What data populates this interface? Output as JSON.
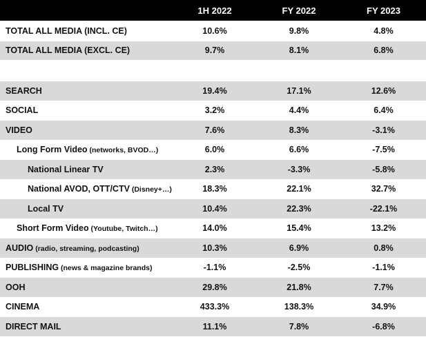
{
  "chart_data": {
    "type": "table",
    "columns": [
      "",
      "1H 2022",
      "FY 2022",
      "FY 2023"
    ],
    "rows": [
      {
        "label": "TOTAL ALL MEDIA (INCL. CE)",
        "note": "",
        "indent": 0,
        "shade": false,
        "values": [
          "10.6%",
          "9.8%",
          "4.8%"
        ]
      },
      {
        "label": "TOTAL ALL MEDIA (EXCL. CE)",
        "note": "",
        "indent": 0,
        "shade": true,
        "values": [
          "9.7%",
          "8.1%",
          "6.8%"
        ]
      },
      {
        "spacer": true
      },
      {
        "label": "SEARCH",
        "note": "",
        "indent": 0,
        "shade": true,
        "values": [
          "19.4%",
          "17.1%",
          "12.6%"
        ]
      },
      {
        "label": "SOCIAL",
        "note": "",
        "indent": 0,
        "shade": false,
        "values": [
          "3.2%",
          "4.4%",
          "6.4%"
        ]
      },
      {
        "label": "VIDEO",
        "note": "",
        "indent": 0,
        "shade": true,
        "values": [
          "7.6%",
          "8.3%",
          "-3.1%"
        ]
      },
      {
        "label": "Long Form Video",
        "note": " (networks, BVOD…)",
        "indent": 1,
        "shade": false,
        "values": [
          "6.0%",
          "6.6%",
          "-7.5%"
        ]
      },
      {
        "label": "National Linear TV",
        "note": "",
        "indent": 2,
        "shade": true,
        "values": [
          "2.3%",
          "-3.3%",
          "-5.8%"
        ]
      },
      {
        "label": "National AVOD, OTT/CTV",
        "note": " (Disney+…)",
        "indent": 2,
        "shade": false,
        "values": [
          "18.3%",
          "22.1%",
          "32.7%"
        ]
      },
      {
        "label": "Local TV",
        "note": "",
        "indent": 2,
        "shade": true,
        "values": [
          "10.4%",
          "22.3%",
          "-22.1%"
        ]
      },
      {
        "label": "Short Form Video",
        "note": " (Youtube, Twitch…)",
        "indent": 1,
        "shade": false,
        "values": [
          "14.0%",
          "15.4%",
          "13.2%"
        ]
      },
      {
        "label": "AUDIO",
        "note": " (radio, streaming, podcasting)",
        "indent": 0,
        "shade": true,
        "values": [
          "10.3%",
          "6.9%",
          "0.8%"
        ]
      },
      {
        "label": "PUBLISHING",
        "note": " (news & magazine brands)",
        "indent": 0,
        "shade": false,
        "values": [
          "-1.1%",
          "-2.5%",
          "-1.1%"
        ]
      },
      {
        "label": "OOH",
        "note": "",
        "indent": 0,
        "shade": true,
        "values": [
          "29.8%",
          "21.8%",
          "7.7%"
        ]
      },
      {
        "label": "CINEMA",
        "note": "",
        "indent": 0,
        "shade": false,
        "values": [
          "433.3%",
          "138.3%",
          "34.9%"
        ]
      },
      {
        "label": "DIRECT MAIL",
        "note": "",
        "indent": 0,
        "shade": true,
        "values": [
          "11.1%",
          "7.8%",
          "-6.8%"
        ]
      }
    ]
  }
}
